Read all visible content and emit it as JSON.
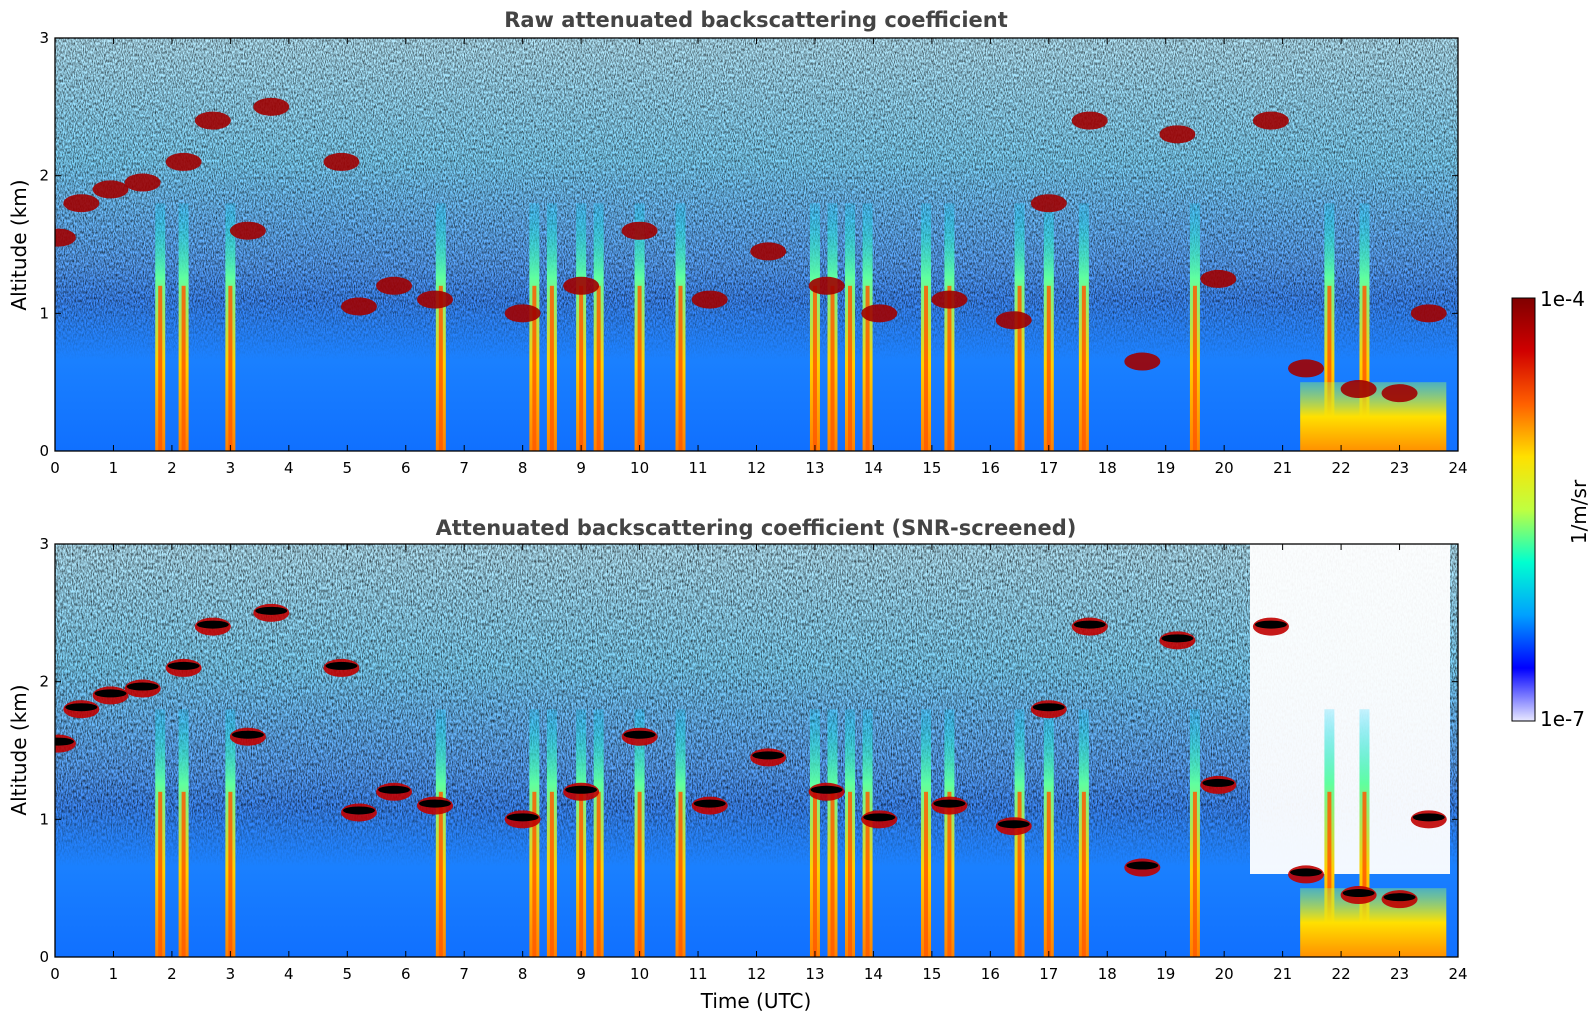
{
  "chart_data": [
    {
      "type": "heatmap",
      "title": "Raw attenuated backscattering coefficient",
      "xlabel": "",
      "ylabel": "Altitude (km)",
      "xlim": [
        0,
        24
      ],
      "ylim": [
        0,
        3
      ],
      "x_ticks": [
        0,
        1,
        2,
        3,
        4,
        5,
        6,
        7,
        8,
        9,
        10,
        11,
        12,
        13,
        14,
        15,
        16,
        17,
        18,
        19,
        20,
        21,
        22,
        23,
        24
      ],
      "y_ticks": [
        0,
        1,
        2,
        3
      ],
      "clouds": [
        {
          "x": 0.05,
          "y": 1.55
        },
        {
          "x": 0.45,
          "y": 1.8
        },
        {
          "x": 0.95,
          "y": 1.9
        },
        {
          "x": 1.5,
          "y": 1.95
        },
        {
          "x": 2.2,
          "y": 2.1
        },
        {
          "x": 2.7,
          "y": 2.4
        },
        {
          "x": 3.3,
          "y": 1.6
        },
        {
          "x": 3.7,
          "y": 2.5
        },
        {
          "x": 4.9,
          "y": 2.1
        },
        {
          "x": 5.2,
          "y": 1.05
        },
        {
          "x": 5.8,
          "y": 1.2
        },
        {
          "x": 6.5,
          "y": 1.1
        },
        {
          "x": 8.0,
          "y": 1.0
        },
        {
          "x": 9.0,
          "y": 1.2
        },
        {
          "x": 10.0,
          "y": 1.6
        },
        {
          "x": 11.2,
          "y": 1.1
        },
        {
          "x": 12.2,
          "y": 1.45
        },
        {
          "x": 13.2,
          "y": 1.2
        },
        {
          "x": 14.1,
          "y": 1.0
        },
        {
          "x": 15.3,
          "y": 1.1
        },
        {
          "x": 16.4,
          "y": 0.95
        },
        {
          "x": 17.0,
          "y": 1.8
        },
        {
          "x": 17.7,
          "y": 2.4
        },
        {
          "x": 18.6,
          "y": 0.65
        },
        {
          "x": 19.2,
          "y": 2.3
        },
        {
          "x": 19.9,
          "y": 1.25
        },
        {
          "x": 20.8,
          "y": 2.4
        },
        {
          "x": 21.4,
          "y": 0.6
        },
        {
          "x": 22.3,
          "y": 0.45
        },
        {
          "x": 23.0,
          "y": 0.42
        },
        {
          "x": 23.5,
          "y": 1.0
        }
      ],
      "precip_columns": [
        1.8,
        2.2,
        3.0,
        6.6,
        8.2,
        8.5,
        9.0,
        9.3,
        10.0,
        10.7,
        13.0,
        13.3,
        13.6,
        13.9,
        14.9,
        15.3,
        16.5,
        17.0,
        17.6,
        19.5,
        21.8,
        22.4
      ],
      "fog_x": [
        21.3,
        23.8
      ]
    },
    {
      "type": "heatmap",
      "title": "Attenuated backscattering coefficient (SNR-screened)",
      "xlabel": "Time (UTC)",
      "ylabel": "Altitude (km)",
      "xlim": [
        0,
        24
      ],
      "ylim": [
        0,
        3
      ],
      "x_ticks": [
        0,
        1,
        2,
        3,
        4,
        5,
        6,
        7,
        8,
        9,
        10,
        11,
        12,
        13,
        14,
        15,
        16,
        17,
        18,
        19,
        20,
        21,
        22,
        23,
        24
      ],
      "y_ticks": [
        0,
        1,
        2,
        3
      ],
      "cloud_tops_marked": true
    }
  ],
  "colorbar": {
    "max_label": "1e-4",
    "min_label": "1e-7",
    "unit": "1/m/sr",
    "colormap": [
      "#e8e8ff",
      "#0000ff",
      "#00a0ff",
      "#00ffd0",
      "#c0ff40",
      "#ffe000",
      "#ff6000",
      "#d00000",
      "#800000"
    ]
  }
}
